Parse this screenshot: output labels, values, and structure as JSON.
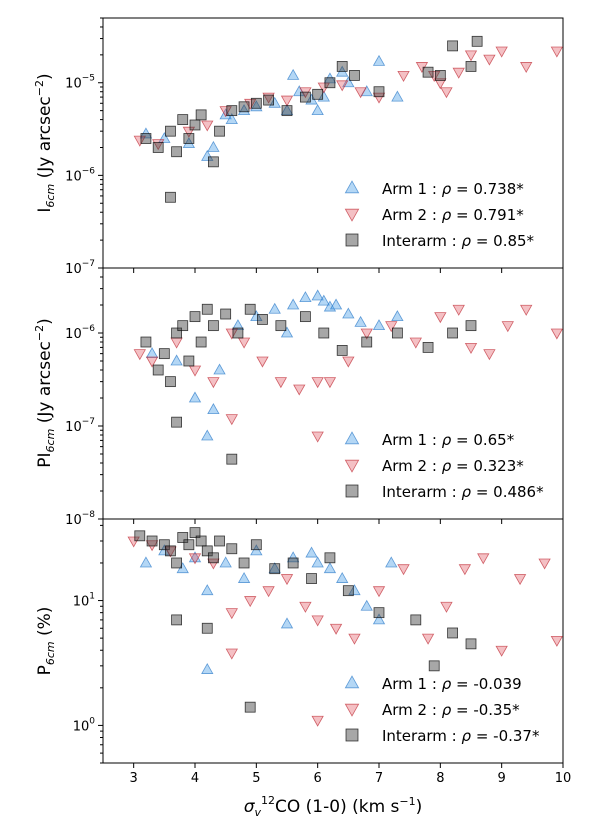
{
  "chart_data": [
    {
      "type": "scatter",
      "ylabel": "I6cm (Jy arcsec−2)",
      "ylabel_main": "I",
      "ylabel_sub": "6cm",
      "ylabel_rest": " (Jy arcsec",
      "ylabel_sup": "−2",
      "ylabel_end": ")",
      "yscale": "log",
      "ylim": [
        1e-07,
        5e-05
      ],
      "xlim": [
        2.5,
        10
      ],
      "yticks": [
        1e-07,
        1e-06,
        1e-05
      ],
      "ytick_labels": [
        {
          "base": "10",
          "exp": "−7"
        },
        {
          "base": "10",
          "exp": "−6"
        },
        {
          "base": "10",
          "exp": "−5"
        }
      ],
      "legend": [
        {
          "series": "Arm 1",
          "label": "Arm 1 : ",
          "rho": "ρ",
          "value": " = 0.738*"
        },
        {
          "series": "Arm 2",
          "label": "Arm 2 : ",
          "rho": "ρ",
          "value": " = 0.791*"
        },
        {
          "series": "Interarm",
          "label": "Interarm : ",
          "rho": "ρ",
          "value": " = 0.85*"
        }
      ],
      "series": [
        {
          "name": "Arm 1",
          "x": [
            3.2,
            3.5,
            3.9,
            4.2,
            4.3,
            4.5,
            4.8,
            5.0,
            5.3,
            5.5,
            5.7,
            5.9,
            6.1,
            6.2,
            6.4,
            6.5,
            6.8,
            7.0,
            7.3,
            6.0,
            5.6,
            4.6
          ],
          "y": [
            2.8e-06,
            2.5e-06,
            2.2e-06,
            1.6e-06,
            2e-06,
            4.5e-06,
            5e-06,
            5.5e-06,
            6e-06,
            5e-06,
            8e-06,
            6.5e-06,
            7e-06,
            1.1e-05,
            1.3e-05,
            1e-05,
            8e-06,
            1.7e-05,
            7e-06,
            5e-06,
            1.2e-05,
            4e-06
          ]
        },
        {
          "name": "Arm 2",
          "x": [
            3.1,
            3.4,
            3.9,
            4.2,
            4.5,
            4.9,
            5.2,
            5.5,
            5.8,
            6.1,
            6.4,
            6.7,
            7.0,
            7.4,
            7.7,
            8.0,
            8.3,
            8.5,
            8.8,
            9.0,
            9.4,
            9.9,
            8.1,
            7.9
          ],
          "y": [
            2.4e-06,
            2.2e-06,
            3e-06,
            3.5e-06,
            5e-06,
            6e-06,
            7e-06,
            6.5e-06,
            8e-06,
            9e-06,
            9.5e-06,
            8e-06,
            7e-06,
            1.2e-05,
            1.5e-05,
            1e-05,
            1.3e-05,
            2e-05,
            1.8e-05,
            2.2e-05,
            1.5e-05,
            2.2e-05,
            8e-06,
            1.2e-05
          ]
        },
        {
          "name": "Interarm",
          "x": [
            3.2,
            3.4,
            3.6,
            3.7,
            3.8,
            3.9,
            4.0,
            4.1,
            4.3,
            4.4,
            4.6,
            4.8,
            5.0,
            5.2,
            5.5,
            5.8,
            6.0,
            6.2,
            6.4,
            6.6,
            7.0,
            7.8,
            8.2,
            8.5,
            8.6,
            8.0,
            3.6
          ],
          "y": [
            2.5e-06,
            2e-06,
            3e-06,
            1.8e-06,
            4e-06,
            2.5e-06,
            3.5e-06,
            4.5e-06,
            1.4e-06,
            3e-06,
            5e-06,
            5.5e-06,
            6e-06,
            6.5e-06,
            5e-06,
            7e-06,
            7.5e-06,
            1e-05,
            1.5e-05,
            1.2e-05,
            8e-06,
            1.3e-05,
            2.5e-05,
            1.5e-05,
            2.8e-05,
            1.2e-05,
            5.8e-07
          ]
        }
      ]
    },
    {
      "type": "scatter",
      "ylabel": "PI6cm (Jy arcsec−2)",
      "ylabel_main": "PI",
      "ylabel_sub": "6cm",
      "ylabel_rest": " (Jy arcsec",
      "ylabel_sup": "−2",
      "ylabel_end": ")",
      "yscale": "log",
      "ylim": [
        1e-08,
        5e-06
      ],
      "xlim": [
        2.5,
        10
      ],
      "yticks": [
        1e-08,
        1e-07,
        1e-06
      ],
      "ytick_labels": [
        {
          "base": "10",
          "exp": "−8"
        },
        {
          "base": "10",
          "exp": "−7"
        },
        {
          "base": "10",
          "exp": "−6"
        }
      ],
      "legend": [
        {
          "series": "Arm 1",
          "label": "Arm 1 : ",
          "rho": "ρ",
          "value": " = 0.65*"
        },
        {
          "series": "Arm 2",
          "label": "Arm 2 : ",
          "rho": "ρ",
          "value": " = 0.323*"
        },
        {
          "series": "Interarm",
          "label": "Interarm : ",
          "rho": "ρ",
          "value": " = 0.486*"
        }
      ],
      "series": [
        {
          "name": "Arm 1",
          "x": [
            3.3,
            3.7,
            4.0,
            4.2,
            4.4,
            4.7,
            5.0,
            5.3,
            5.6,
            5.8,
            6.0,
            6.1,
            6.2,
            6.3,
            6.5,
            6.7,
            7.0,
            7.3,
            5.5,
            4.3
          ],
          "y": [
            6e-07,
            5e-07,
            2e-07,
            7.8e-08,
            4e-07,
            1.2e-06,
            1.5e-06,
            1.8e-06,
            2e-06,
            2.4e-06,
            2.5e-06,
            2.2e-06,
            1.9e-06,
            2e-06,
            1.6e-06,
            1.3e-06,
            1.2e-06,
            1.5e-06,
            1e-06,
            1.5e-07
          ]
        },
        {
          "name": "Arm 2",
          "x": [
            3.1,
            3.3,
            3.7,
            4.0,
            4.3,
            4.6,
            4.8,
            5.1,
            5.4,
            5.7,
            6.0,
            6.2,
            6.5,
            6.8,
            7.2,
            7.6,
            8.0,
            8.3,
            8.5,
            8.8,
            9.1,
            9.4,
            9.9,
            6.0,
            4.6
          ],
          "y": [
            6e-07,
            5e-07,
            8e-07,
            4e-07,
            3e-07,
            1e-06,
            8e-07,
            5e-07,
            3e-07,
            2.5e-07,
            7.8e-08,
            3e-07,
            5e-07,
            1e-06,
            1.2e-06,
            8e-07,
            1.5e-06,
            1.8e-06,
            7e-07,
            6e-07,
            1.2e-06,
            1.8e-06,
            1e-06,
            3e-07,
            1.2e-07
          ]
        },
        {
          "name": "Interarm",
          "x": [
            3.2,
            3.4,
            3.5,
            3.6,
            3.7,
            3.8,
            3.9,
            4.0,
            4.1,
            4.2,
            4.3,
            4.5,
            4.7,
            4.9,
            5.1,
            5.4,
            5.8,
            6.1,
            6.4,
            6.8,
            7.3,
            7.8,
            8.2,
            8.5,
            3.7,
            4.6
          ],
          "y": [
            8e-07,
            4e-07,
            6e-07,
            3e-07,
            1e-06,
            1.2e-06,
            5e-07,
            1.5e-06,
            8e-07,
            1.8e-06,
            1.2e-06,
            1.6e-06,
            1e-06,
            1.8e-06,
            1.4e-06,
            1.2e-06,
            1.5e-06,
            1e-06,
            6.5e-07,
            8e-07,
            1e-06,
            7e-07,
            1e-06,
            1.2e-06,
            1.1e-07,
            4.4e-08
          ]
        }
      ]
    },
    {
      "type": "scatter",
      "ylabel": "P6cm (%)",
      "ylabel_main": "P",
      "ylabel_sub": "6cm",
      "ylabel_rest": " (%)",
      "ylabel_sup": "",
      "ylabel_end": "",
      "xlabel_main": "σ",
      "xlabel_sub": "v",
      "xlabel_sup": "12",
      "xlabel_rest": "CO (1-0) (km s",
      "xlabel_sup2": "−1",
      "xlabel_end": ")",
      "xlabel": "σv12CO (1-0) (km s−1)",
      "yscale": "log",
      "ylim": [
        0.5,
        45
      ],
      "xlim": [
        2.5,
        10
      ],
      "xticks": [
        3,
        4,
        5,
        6,
        7,
        8,
        9,
        10
      ],
      "xtick_labels": [
        "3",
        "4",
        "5",
        "6",
        "7",
        "8",
        "9",
        "10"
      ],
      "yticks": [
        1,
        10
      ],
      "ytick_labels": [
        {
          "base": "10",
          "exp": "0"
        },
        {
          "base": "10",
          "exp": "1"
        }
      ],
      "legend": [
        {
          "series": "Arm 1",
          "label": "Arm 1 : ",
          "rho": "ρ",
          "value": " = -0.039"
        },
        {
          "series": "Arm 2",
          "label": "Arm 2 : ",
          "rho": "ρ",
          "value": " = -0.35*"
        },
        {
          "series": "Interarm",
          "label": "Interarm : ",
          "rho": "ρ",
          "value": " = -0.37*"
        }
      ],
      "series": [
        {
          "name": "Arm 1",
          "x": [
            3.2,
            3.5,
            3.8,
            4.0,
            4.2,
            4.5,
            4.8,
            5.0,
            5.3,
            5.6,
            5.9,
            6.0,
            6.2,
            6.4,
            6.6,
            6.8,
            7.0,
            7.2,
            4.2,
            5.5
          ],
          "y": [
            20,
            25,
            18,
            22,
            12,
            20,
            15,
            25,
            18,
            22,
            24,
            20,
            18,
            15,
            12,
            9,
            7,
            20,
            2.8,
            6.5
          ]
        },
        {
          "name": "Arm 2",
          "x": [
            3.0,
            3.3,
            3.6,
            4.0,
            4.3,
            4.6,
            4.9,
            5.2,
            5.5,
            5.8,
            6.0,
            6.3,
            6.6,
            7.0,
            7.4,
            7.8,
            8.1,
            8.4,
            8.7,
            9.0,
            9.3,
            9.7,
            9.9,
            6.0,
            4.6
          ],
          "y": [
            30,
            28,
            25,
            22,
            20,
            8,
            10,
            12,
            15,
            9,
            7,
            6,
            5,
            12,
            18,
            5,
            9,
            18,
            22,
            4,
            15,
            20,
            4.8,
            1.1,
            3.8
          ]
        },
        {
          "name": "Interarm",
          "x": [
            3.1,
            3.3,
            3.5,
            3.6,
            3.7,
            3.8,
            3.9,
            4.0,
            4.1,
            4.2,
            4.3,
            4.4,
            4.6,
            4.8,
            5.0,
            5.3,
            5.6,
            5.9,
            6.2,
            6.5,
            7.0,
            7.6,
            7.9,
            8.2,
            8.5,
            4.2,
            4.9,
            3.7
          ],
          "y": [
            33,
            30,
            28,
            25,
            20,
            32,
            28,
            35,
            30,
            25,
            22,
            30,
            26,
            20,
            28,
            18,
            20,
            15,
            22,
            12,
            8,
            7,
            3,
            5.5,
            4.5,
            6,
            1.4,
            7
          ]
        }
      ]
    }
  ]
}
